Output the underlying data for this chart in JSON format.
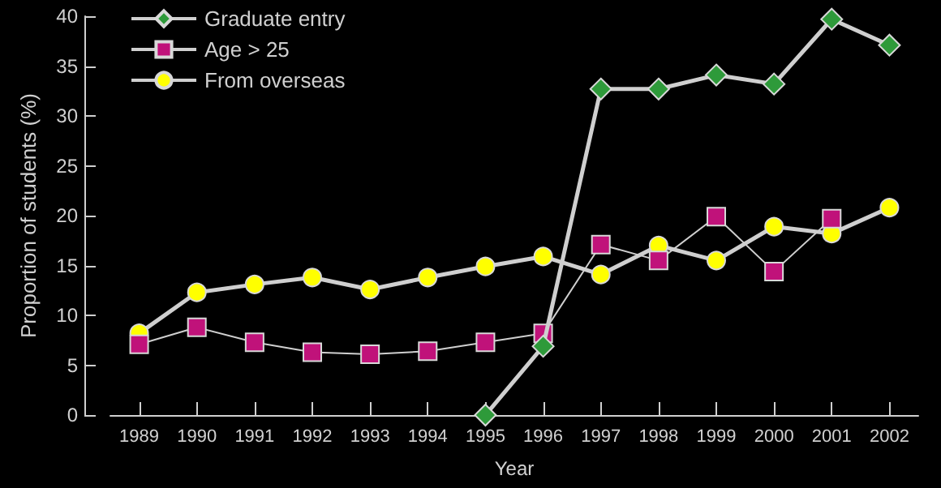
{
  "chart_data": {
    "type": "line",
    "xlabel": "Year",
    "ylabel": "Proportion of students (%)",
    "categories": [
      "1989",
      "1990",
      "1991",
      "1992",
      "1993",
      "1994",
      "1995",
      "1996",
      "1997",
      "1998",
      "1999",
      "2000",
      "2001",
      "2002"
    ],
    "series": [
      {
        "name": "Graduate entry",
        "color": "#2e9a3a",
        "marker": "diamond",
        "values": [
          null,
          null,
          null,
          null,
          null,
          null,
          0,
          6.9,
          32.7,
          32.7,
          34.1,
          33.2,
          39.7,
          37.1
        ]
      },
      {
        "name": "Age > 25",
        "color": "#c0127a",
        "marker": "square",
        "values": [
          7.1,
          8.8,
          7.3,
          6.3,
          6.1,
          6.4,
          7.3,
          8.2,
          17.1,
          15.5,
          19.9,
          14.4,
          19.7,
          null
        ]
      },
      {
        "name": "From overseas",
        "color": "#ffff00",
        "marker": "circle",
        "values": [
          8.2,
          12.3,
          13.1,
          13.8,
          12.6,
          13.8,
          14.9,
          15.9,
          14.1,
          17.0,
          15.5,
          18.9,
          18.2,
          20.8
        ]
      }
    ],
    "ylim": [
      0,
      40
    ],
    "yticks": [
      0,
      5,
      10,
      15,
      20,
      25,
      30,
      35,
      40
    ],
    "grid": false,
    "legend": "top left"
  }
}
